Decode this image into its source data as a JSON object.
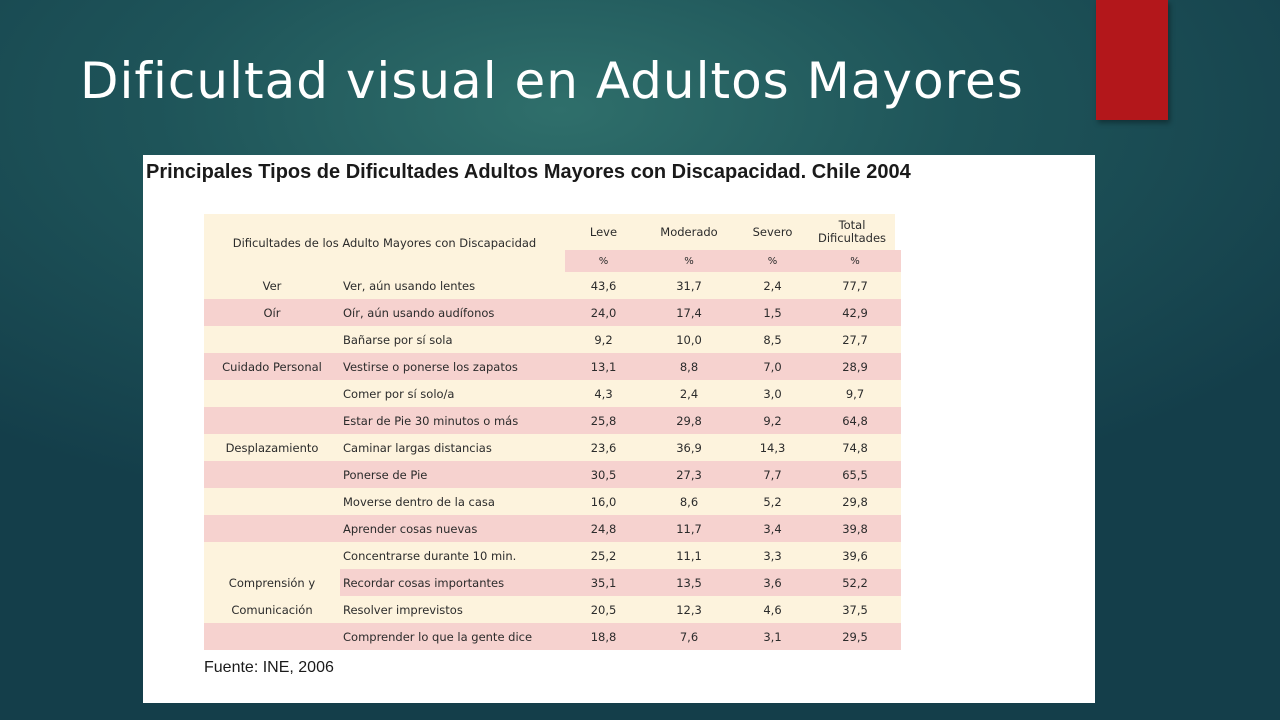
{
  "slide": {
    "title": "Dificultad visual en Adultos Mayores",
    "accent_color": "#b3171b"
  },
  "table": {
    "heading": "Principales Tipos de Dificultades Adultos Mayores con Discapacidad. Chile 2004",
    "header_label": "Dificultades de los Adulto Mayores con Discapacidad",
    "columns": [
      "Leve",
      "Moderado",
      "Severo",
      "Total Dificultades"
    ],
    "units": [
      "%",
      "%",
      "%",
      "%"
    ],
    "groups": [
      {
        "label": "Ver",
        "rows": [
          {
            "item": "Ver, aún usando lentes",
            "values": [
              "43,6",
              "31,7",
              "2,4",
              "77,7"
            ]
          }
        ]
      },
      {
        "label": "Oír",
        "rows": [
          {
            "item": "Oír, aún usando audífonos",
            "values": [
              "24,0",
              "17,4",
              "1,5",
              "42,9"
            ]
          }
        ]
      },
      {
        "label": "Cuidado Personal",
        "rows": [
          {
            "item": "Bañarse por sí sola",
            "values": [
              "9,2",
              "10,0",
              "8,5",
              "27,7"
            ]
          },
          {
            "item": "Vestirse o ponerse los zapatos",
            "values": [
              "13,1",
              "8,8",
              "7,0",
              "28,9"
            ]
          },
          {
            "item": "Comer por sí solo/a",
            "values": [
              "4,3",
              "2,4",
              "3,0",
              "9,7"
            ]
          }
        ]
      },
      {
        "label": "Desplazamiento",
        "rows": [
          {
            "item": "Estar de Pie 30 minutos o más",
            "values": [
              "25,8",
              "29,8",
              "9,2",
              "64,8"
            ]
          },
          {
            "item": "Caminar largas distancias",
            "values": [
              "23,6",
              "36,9",
              "14,3",
              "74,8"
            ]
          },
          {
            "item": "Ponerse de Pie",
            "values": [
              "30,5",
              "27,3",
              "7,7",
              "65,5"
            ]
          },
          {
            "item": "Moverse dentro de la casa",
            "values": [
              "16,0",
              "8,6",
              "5,2",
              "29,8"
            ]
          }
        ]
      },
      {
        "label_lines": [
          "Comprensión y",
          "Comunicación"
        ],
        "rows": [
          {
            "item": "Aprender cosas nuevas",
            "values": [
              "24,8",
              "11,7",
              "3,4",
              "39,8"
            ]
          },
          {
            "item": "Concentrarse durante 10 min.",
            "values": [
              "25,2",
              "11,1",
              "3,3",
              "39,6"
            ]
          },
          {
            "item": "Recordar cosas importantes",
            "values": [
              "35,1",
              "13,5",
              "3,6",
              "52,2"
            ]
          },
          {
            "item": "Resolver imprevistos",
            "values": [
              "20,5",
              "12,3",
              "4,6",
              "37,5"
            ]
          },
          {
            "item": "Comprender lo que la gente dice",
            "values": [
              "18,8",
              "7,6",
              "3,1",
              "29,5"
            ]
          }
        ]
      }
    ],
    "source": "Fuente: INE, 2006"
  }
}
